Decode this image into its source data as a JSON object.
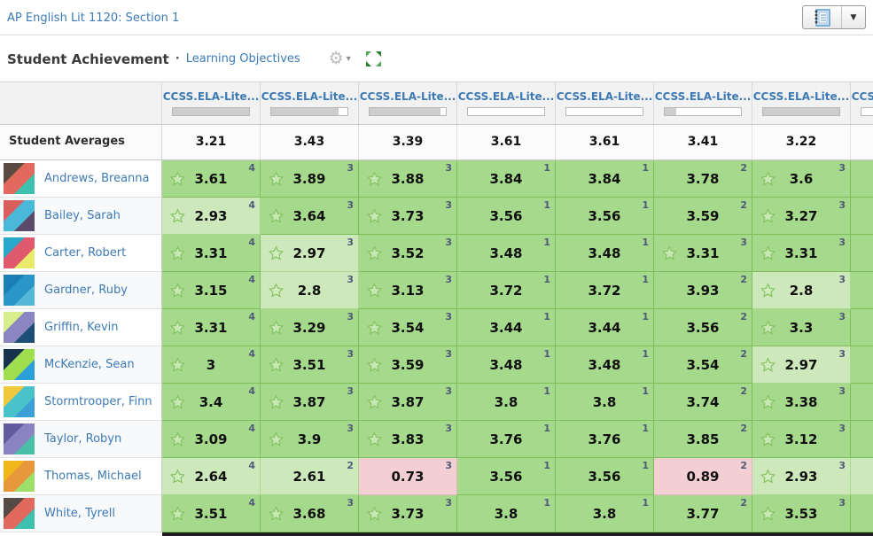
{
  "header": {
    "course_title": "AP English Lit 1120: Section 1"
  },
  "toolbar": {
    "title": "Student Achievement",
    "separator": "·",
    "subtitle_link": "Learning Objectives",
    "gear_icon": "settings-gear",
    "fullscreen_icon": "expand-arrows",
    "notebook_icon": "gradebook-notebook",
    "accent_green": "#4caf50",
    "link_blue": "#3d7ab5"
  },
  "table": {
    "averages_label": "Student Averages",
    "column_label": "CCSS.ELA-Lite...",
    "columns": [
      {
        "label": "CCSS.ELA-Lite...",
        "progress": 100
      },
      {
        "label": "CCSS.ELA-Lite...",
        "progress": 88
      },
      {
        "label": "CCSS.ELA-Lite...",
        "progress": 93
      },
      {
        "label": "CCSS.ELA-Lite...",
        "progress": 0
      },
      {
        "label": "CCSS.ELA-Lite...",
        "progress": 0
      },
      {
        "label": "CCSS.ELA-Lite...",
        "progress": 15
      },
      {
        "label": "CCSS.ELA-Lite...",
        "progress": 100
      },
      {
        "label": "CCSS.ELA-Lite...",
        "progress": 0
      }
    ],
    "averages": [
      "3.21",
      "3.43",
      "3.39",
      "3.61",
      "3.61",
      "3.41",
      "3.22",
      ""
    ],
    "cell_colors": {
      "green": "#a5d98b",
      "light": "#cde9bb",
      "pink": "#f3ced3"
    },
    "students": [
      {
        "name": "Andrews, Breanna",
        "avatar_colors": [
          "#5b4a42",
          "#e2695e",
          "#3fbfae"
        ],
        "overflow_level": "green",
        "cells": [
          {
            "value": "3.61",
            "count": "4",
            "star": true,
            "level": "green"
          },
          {
            "value": "3.89",
            "count": "3",
            "star": true,
            "level": "green"
          },
          {
            "value": "3.88",
            "count": "3",
            "star": true,
            "level": "green"
          },
          {
            "value": "3.84",
            "count": "1",
            "star": false,
            "level": "green"
          },
          {
            "value": "3.84",
            "count": "1",
            "star": false,
            "level": "green"
          },
          {
            "value": "3.78",
            "count": "2",
            "star": false,
            "level": "green"
          },
          {
            "value": "3.6",
            "count": "3",
            "star": true,
            "level": "green"
          }
        ]
      },
      {
        "name": "Bailey, Sarah",
        "avatar_colors": [
          "#d95f5f",
          "#4ab8d8",
          "#5b4a6b"
        ],
        "overflow_level": "green",
        "cells": [
          {
            "value": "2.93",
            "count": "4",
            "star": true,
            "level": "light"
          },
          {
            "value": "3.64",
            "count": "3",
            "star": true,
            "level": "green"
          },
          {
            "value": "3.73",
            "count": "3",
            "star": true,
            "level": "green"
          },
          {
            "value": "3.56",
            "count": "1",
            "star": false,
            "level": "green"
          },
          {
            "value": "3.56",
            "count": "1",
            "star": false,
            "level": "green"
          },
          {
            "value": "3.59",
            "count": "2",
            "star": false,
            "level": "green"
          },
          {
            "value": "3.27",
            "count": "3",
            "star": true,
            "level": "green"
          }
        ]
      },
      {
        "name": "Carter, Robert",
        "avatar_colors": [
          "#2aa8cc",
          "#e05a6d",
          "#e8ea6a"
        ],
        "overflow_level": "green",
        "cells": [
          {
            "value": "3.31",
            "count": "4",
            "star": true,
            "level": "green"
          },
          {
            "value": "2.97",
            "count": "3",
            "star": true,
            "level": "light"
          },
          {
            "value": "3.52",
            "count": "3",
            "star": true,
            "level": "green"
          },
          {
            "value": "3.48",
            "count": "1",
            "star": false,
            "level": "green"
          },
          {
            "value": "3.48",
            "count": "1",
            "star": false,
            "level": "green"
          },
          {
            "value": "3.31",
            "count": "3",
            "star": true,
            "level": "green"
          },
          {
            "value": "3.31",
            "count": "3",
            "star": true,
            "level": "green"
          }
        ]
      },
      {
        "name": "Gardner, Ruby",
        "avatar_colors": [
          "#1b7fb4",
          "#2a96c8",
          "#57b7d8"
        ],
        "overflow_level": "green",
        "cells": [
          {
            "value": "3.15",
            "count": "4",
            "star": true,
            "level": "green"
          },
          {
            "value": "2.8",
            "count": "3",
            "star": true,
            "level": "light"
          },
          {
            "value": "3.13",
            "count": "3",
            "star": true,
            "level": "green"
          },
          {
            "value": "3.72",
            "count": "1",
            "star": false,
            "level": "green"
          },
          {
            "value": "3.72",
            "count": "1",
            "star": false,
            "level": "green"
          },
          {
            "value": "3.93",
            "count": "2",
            "star": false,
            "level": "green"
          },
          {
            "value": "2.8",
            "count": "3",
            "star": true,
            "level": "light"
          }
        ]
      },
      {
        "name": "Griffin, Kevin",
        "avatar_colors": [
          "#d6ef8a",
          "#8b86c1",
          "#1d4e73"
        ],
        "overflow_level": "green",
        "cells": [
          {
            "value": "3.31",
            "count": "4",
            "star": true,
            "level": "green"
          },
          {
            "value": "3.29",
            "count": "3",
            "star": true,
            "level": "green"
          },
          {
            "value": "3.54",
            "count": "3",
            "star": true,
            "level": "green"
          },
          {
            "value": "3.44",
            "count": "1",
            "star": false,
            "level": "green"
          },
          {
            "value": "3.44",
            "count": "1",
            "star": false,
            "level": "green"
          },
          {
            "value": "3.56",
            "count": "2",
            "star": false,
            "level": "green"
          },
          {
            "value": "3.3",
            "count": "3",
            "star": true,
            "level": "green"
          }
        ]
      },
      {
        "name": "McKenzie, Sean",
        "avatar_colors": [
          "#16324d",
          "#9ede4f",
          "#2a9fd8"
        ],
        "overflow_level": "green",
        "cells": [
          {
            "value": "3",
            "count": "4",
            "star": true,
            "level": "green"
          },
          {
            "value": "3.51",
            "count": "3",
            "star": true,
            "level": "green"
          },
          {
            "value": "3.59",
            "count": "3",
            "star": true,
            "level": "green"
          },
          {
            "value": "3.48",
            "count": "1",
            "star": false,
            "level": "green"
          },
          {
            "value": "3.48",
            "count": "1",
            "star": false,
            "level": "green"
          },
          {
            "value": "3.54",
            "count": "2",
            "star": false,
            "level": "green"
          },
          {
            "value": "2.97",
            "count": "3",
            "star": true,
            "level": "light"
          }
        ]
      },
      {
        "name": "Stormtrooper, Finn",
        "avatar_colors": [
          "#f0c83c",
          "#49c3c9",
          "#3c9fd6"
        ],
        "overflow_level": "green",
        "cells": [
          {
            "value": "3.4",
            "count": "4",
            "star": true,
            "level": "green"
          },
          {
            "value": "3.87",
            "count": "3",
            "star": true,
            "level": "green"
          },
          {
            "value": "3.87",
            "count": "3",
            "star": true,
            "level": "green"
          },
          {
            "value": "3.8",
            "count": "1",
            "star": false,
            "level": "green"
          },
          {
            "value": "3.8",
            "count": "1",
            "star": false,
            "level": "green"
          },
          {
            "value": "3.74",
            "count": "2",
            "star": false,
            "level": "green"
          },
          {
            "value": "3.38",
            "count": "3",
            "star": true,
            "level": "green"
          }
        ]
      },
      {
        "name": "Taylor, Robyn",
        "avatar_colors": [
          "#645a9e",
          "#8c84c0",
          "#49bfa8"
        ],
        "overflow_level": "green",
        "cells": [
          {
            "value": "3.09",
            "count": "4",
            "star": true,
            "level": "green"
          },
          {
            "value": "3.9",
            "count": "3",
            "star": true,
            "level": "green"
          },
          {
            "value": "3.83",
            "count": "3",
            "star": true,
            "level": "green"
          },
          {
            "value": "3.76",
            "count": "1",
            "star": false,
            "level": "green"
          },
          {
            "value": "3.76",
            "count": "1",
            "star": false,
            "level": "green"
          },
          {
            "value": "3.85",
            "count": "2",
            "star": false,
            "level": "green"
          },
          {
            "value": "3.12",
            "count": "3",
            "star": true,
            "level": "green"
          }
        ]
      },
      {
        "name": "Thomas, Michael",
        "avatar_colors": [
          "#f3b71e",
          "#e8983c",
          "#9ede6a"
        ],
        "overflow_level": "light",
        "cells": [
          {
            "value": "2.64",
            "count": "4",
            "star": true,
            "level": "light"
          },
          {
            "value": "2.61",
            "count": "2",
            "star": false,
            "level": "light"
          },
          {
            "value": "0.73",
            "count": "3",
            "star": false,
            "level": "pink"
          },
          {
            "value": "3.56",
            "count": "1",
            "star": false,
            "level": "green"
          },
          {
            "value": "3.56",
            "count": "1",
            "star": false,
            "level": "green"
          },
          {
            "value": "0.89",
            "count": "2",
            "star": false,
            "level": "pink"
          },
          {
            "value": "2.93",
            "count": "3",
            "star": true,
            "level": "light"
          }
        ]
      },
      {
        "name": "White, Tyrell",
        "avatar_colors": [
          "#564a44",
          "#e2695e",
          "#3fbfae"
        ],
        "overflow_level": "green",
        "cells": [
          {
            "value": "3.51",
            "count": "4",
            "star": true,
            "level": "green"
          },
          {
            "value": "3.68",
            "count": "3",
            "star": true,
            "level": "green"
          },
          {
            "value": "3.73",
            "count": "3",
            "star": true,
            "level": "green"
          },
          {
            "value": "3.8",
            "count": "1",
            "star": false,
            "level": "green"
          },
          {
            "value": "3.8",
            "count": "1",
            "star": false,
            "level": "green"
          },
          {
            "value": "3.77",
            "count": "2",
            "star": false,
            "level": "green"
          },
          {
            "value": "3.53",
            "count": "3",
            "star": true,
            "level": "green"
          }
        ]
      }
    ]
  }
}
